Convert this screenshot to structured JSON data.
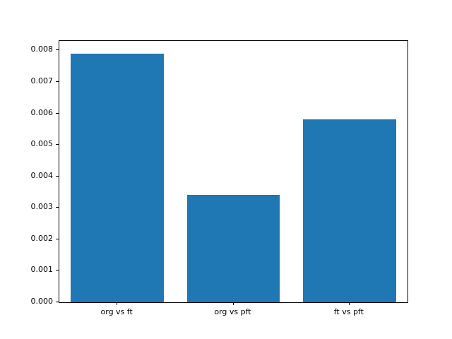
{
  "chart_data": {
    "type": "bar",
    "categories": [
      "org vs ft",
      "org vs pft",
      "ft vs pft"
    ],
    "values": [
      0.0079,
      0.0034,
      0.0058
    ],
    "title": "",
    "xlabel": "",
    "ylabel": "",
    "ylim": [
      0,
      0.0083
    ],
    "ytick_start": 0,
    "ytick_step": 0.001,
    "ytick_max": 0.008,
    "ytick_decimals": 3,
    "bar_color": "#1f77b4",
    "grid": false,
    "legend": null
  }
}
